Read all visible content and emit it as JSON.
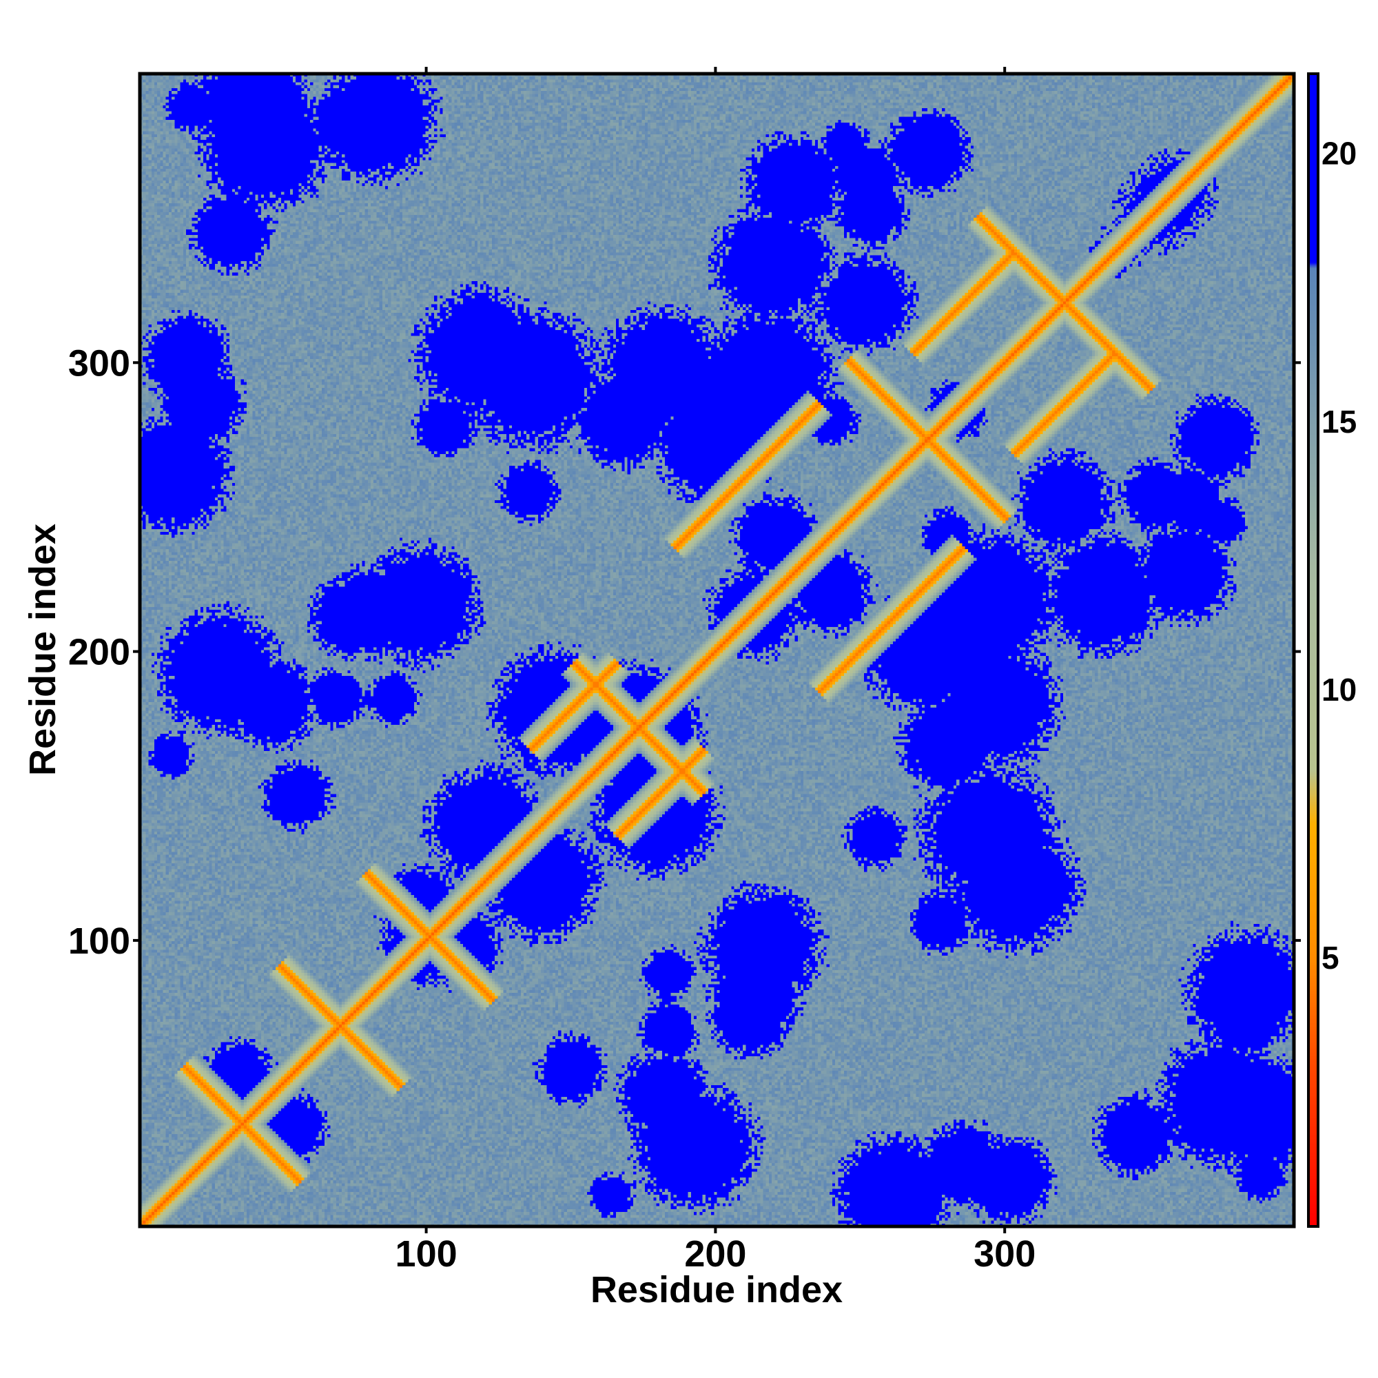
{
  "chart_data": {
    "type": "heatmap",
    "title": "",
    "xlabel": "Residue index",
    "ylabel": "Residue index",
    "n_residues": 400,
    "xlim": [
      1,
      400
    ],
    "ylim": [
      1,
      400
    ],
    "x_ticks": [
      100,
      200,
      300
    ],
    "y_ticks": [
      100,
      200,
      300
    ],
    "x_tick_labels": [
      "100",
      "200",
      "300"
    ],
    "y_tick_labels": [
      "100",
      "200",
      "300"
    ],
    "colorbar": {
      "range": [
        0,
        21.5
      ],
      "ticks": [
        5,
        10,
        15,
        20
      ],
      "tick_labels": [
        "5",
        "10",
        "15",
        "20"
      ],
      "colors": [
        {
          "value": 0,
          "color": "#ff0000"
        },
        {
          "value": 3,
          "color": "#ff4a00"
        },
        {
          "value": 5,
          "color": "#ff8c00"
        },
        {
          "value": 7.5,
          "color": "#ffb000"
        },
        {
          "value": 8.5,
          "color": "#b9c48f"
        },
        {
          "value": 12,
          "color": "#a9bca0"
        },
        {
          "value": 17.9,
          "color": "#5a84b8"
        },
        {
          "value": 18,
          "color": "#0000ff"
        },
        {
          "value": 21.5,
          "color": "#0000ff"
        }
      ]
    },
    "contacts": [
      {
        "i": 1,
        "j": 400,
        "d": 0,
        "kind": "diagonal"
      },
      {
        "i": 25,
        "j": 45,
        "d": -1,
        "kind": "antiparallel"
      },
      {
        "i": 58,
        "j": 80,
        "d": -1,
        "kind": "antiparallel"
      },
      {
        "i": 88,
        "j": 112,
        "d": -1,
        "kind": "antiparallel"
      },
      {
        "i": 160,
        "j": 185,
        "d": -1,
        "kind": "antiparallel"
      },
      {
        "i": 150,
        "j": 180,
        "d": 1,
        "kind": "antiparallel"
      },
      {
        "i": 210,
        "j": 260,
        "d": 1,
        "kind": "antiparallel"
      },
      {
        "i": 255,
        "j": 290,
        "d": -1,
        "kind": "antiparallel"
      },
      {
        "i": 285,
        "j": 320,
        "d": 1,
        "kind": "antiparallel"
      },
      {
        "i": 300,
        "j": 340,
        "d": -1,
        "kind": "antiparallel"
      }
    ]
  }
}
